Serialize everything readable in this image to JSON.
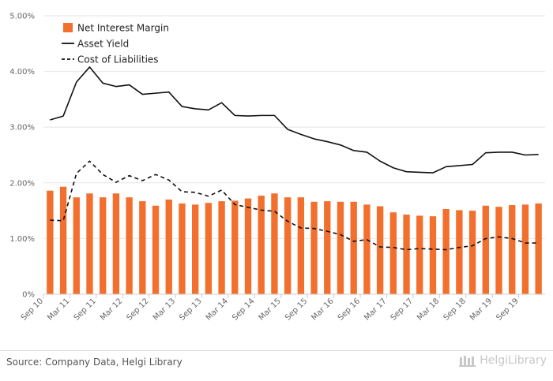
{
  "chart_data": {
    "type": "bar",
    "ylim": [
      0,
      5
    ],
    "y_ticks": [
      "0%",
      "1.00%",
      "2.00%",
      "3.00%",
      "4.00%",
      "5.00%"
    ],
    "x_tick_labels": [
      "Sep 10",
      "Mar 11",
      "Sep 11",
      "Mar 12",
      "Sep 12",
      "Mar 13",
      "Sep 13",
      "Mar 14",
      "Sep 14",
      "Mar 15",
      "Sep 15",
      "Mar 16",
      "Sep 16",
      "Mar 17",
      "Sep 17",
      "Mar 18",
      "Sep 18",
      "Mar 19",
      "Sep 19"
    ],
    "grid": "horizontal",
    "legend_position": "top-left",
    "series": [
      {
        "name": "Net Interest Margin",
        "kind": "bar",
        "color": "#f36f2d",
        "values": [
          1.86,
          1.93,
          1.74,
          1.81,
          1.74,
          1.81,
          1.74,
          1.67,
          1.59,
          1.7,
          1.63,
          1.61,
          1.64,
          1.67,
          1.68,
          1.72,
          1.77,
          1.81,
          1.74,
          1.74,
          1.66,
          1.67,
          1.66,
          1.66,
          1.61,
          1.58,
          1.47,
          1.43,
          1.41,
          1.4,
          1.53,
          1.51,
          1.5,
          1.59,
          1.57,
          1.6,
          1.61,
          1.63
        ]
      },
      {
        "name": "Asset Yield",
        "kind": "line",
        "dash": "solid",
        "color": "#111111",
        "values": [
          3.13,
          3.2,
          3.81,
          4.08,
          3.79,
          3.73,
          3.76,
          3.59,
          3.61,
          3.63,
          3.37,
          3.33,
          3.31,
          3.44,
          3.21,
          3.2,
          3.21,
          3.21,
          2.96,
          2.87,
          2.79,
          2.74,
          2.68,
          2.58,
          2.55,
          2.39,
          2.27,
          2.2,
          2.19,
          2.18,
          2.29,
          2.31,
          2.33,
          2.54,
          2.55,
          2.55,
          2.5,
          2.51
        ]
      },
      {
        "name": "Cost of Liabilities",
        "kind": "line",
        "dash": "dashed",
        "color": "#111111",
        "values": [
          1.33,
          1.32,
          2.17,
          2.39,
          2.15,
          2.01,
          2.13,
          2.04,
          2.15,
          2.05,
          1.84,
          1.83,
          1.76,
          1.87,
          1.61,
          1.56,
          1.51,
          1.49,
          1.31,
          1.19,
          1.18,
          1.13,
          1.07,
          0.95,
          0.98,
          0.85,
          0.84,
          0.8,
          0.82,
          0.81,
          0.8,
          0.84,
          0.87,
          1.0,
          1.03,
          1.0,
          0.92,
          0.92
        ]
      }
    ]
  },
  "footer": {
    "source": "Source: Company Data, Helgi Library",
    "logo_text": "HelgiLibrary"
  }
}
